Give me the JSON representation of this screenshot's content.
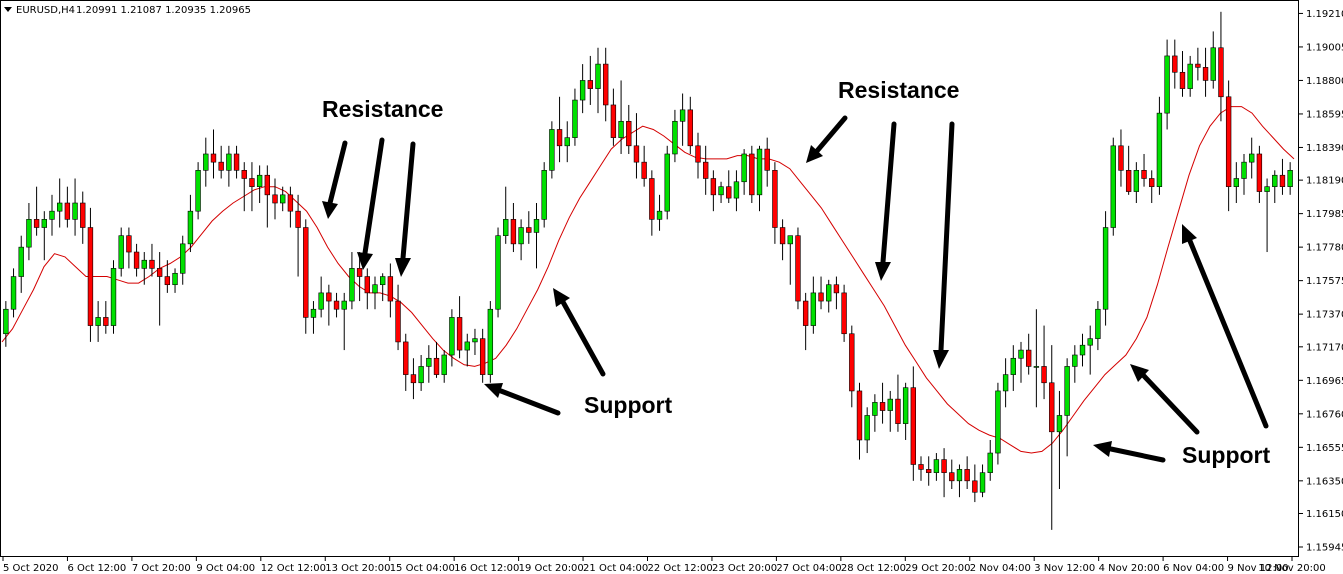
{
  "header": {
    "symbol_info": "EURUSD,H4",
    "ohlc": "1.20991 1.21087 1.20935 1.20965"
  },
  "colors": {
    "bull": "#00e000",
    "bear": "#ff0000",
    "ma_line": "#d40000",
    "wick": "#000000",
    "arrow": "#000000"
  },
  "chart_data": {
    "type": "candlestick",
    "title": "",
    "xlabel": "",
    "ylabel": "",
    "ylim": [
      1.1589,
      1.1928
    ],
    "y_ticks": [
      "1.19210",
      "1.19005",
      "1.18800",
      "1.18595",
      "1.18390",
      "1.18190",
      "1.17985",
      "1.17780",
      "1.17575",
      "1.17370",
      "1.17170",
      "1.16965",
      "1.16760",
      "1.16555",
      "1.16350",
      "1.16150",
      "1.15945"
    ],
    "x_ticks": [
      "5 Oct 2020",
      "6 Oct 12:00",
      "7 Oct 20:00",
      "9 Oct 04:00",
      "12 Oct 12:00",
      "13 Oct 20:00",
      "15 Oct 04:00",
      "16 Oct 12:00",
      "19 Oct 20:00",
      "21 Oct 04:00",
      "22 Oct 12:00",
      "23 Oct 20:00",
      "27 Oct 04:00",
      "28 Oct 12:00",
      "29 Oct 20:00",
      "2 Nov 04:00",
      "3 Nov 12:00",
      "4 Nov 20:00",
      "6 Nov 04:00",
      "9 Nov 12:00",
      "10 Nov 20:00"
    ],
    "candles": [
      [
        1.1725,
        1.1745,
        1.1717,
        1.174
      ],
      [
        1.174,
        1.1765,
        1.1735,
        1.176
      ],
      [
        1.176,
        1.1785,
        1.175,
        1.1778
      ],
      [
        1.1778,
        1.1805,
        1.177,
        1.1795
      ],
      [
        1.1795,
        1.1815,
        1.1785,
        1.179
      ],
      [
        1.179,
        1.18,
        1.177,
        1.1795
      ],
      [
        1.1795,
        1.181,
        1.1785,
        1.18
      ],
      [
        1.18,
        1.182,
        1.179,
        1.1805
      ],
      [
        1.1805,
        1.1815,
        1.179,
        1.1795
      ],
      [
        1.1795,
        1.182,
        1.1785,
        1.1805
      ],
      [
        1.1805,
        1.1812,
        1.178,
        1.179
      ],
      [
        1.179,
        1.1802,
        1.172,
        1.173
      ],
      [
        1.173,
        1.1745,
        1.172,
        1.1735
      ],
      [
        1.1735,
        1.1745,
        1.1725,
        1.173
      ],
      [
        1.173,
        1.177,
        1.1725,
        1.1765
      ],
      [
        1.1765,
        1.179,
        1.176,
        1.1785
      ],
      [
        1.1785,
        1.179,
        1.1765,
        1.1775
      ],
      [
        1.1775,
        1.178,
        1.176,
        1.1765
      ],
      [
        1.1765,
        1.1775,
        1.1755,
        1.177
      ],
      [
        1.177,
        1.178,
        1.176,
        1.1765
      ],
      [
        1.1765,
        1.1775,
        1.173,
        1.176
      ],
      [
        1.176,
        1.177,
        1.175,
        1.1755
      ],
      [
        1.1755,
        1.1765,
        1.175,
        1.1762
      ],
      [
        1.1762,
        1.1785,
        1.1755,
        1.178
      ],
      [
        1.178,
        1.181,
        1.1775,
        1.18
      ],
      [
        1.18,
        1.183,
        1.1795,
        1.1825
      ],
      [
        1.1825,
        1.1845,
        1.1815,
        1.1835
      ],
      [
        1.1835,
        1.185,
        1.182,
        1.183
      ],
      [
        1.183,
        1.184,
        1.182,
        1.1825
      ],
      [
        1.1825,
        1.184,
        1.1815,
        1.1835
      ],
      [
        1.1835,
        1.184,
        1.182,
        1.1825
      ],
      [
        1.1825,
        1.183,
        1.18,
        1.182
      ],
      [
        1.182,
        1.183,
        1.18,
        1.1815
      ],
      [
        1.1815,
        1.1828,
        1.1805,
        1.1822
      ],
      [
        1.1822,
        1.1828,
        1.179,
        1.181
      ],
      [
        1.181,
        1.182,
        1.1795,
        1.1805
      ],
      [
        1.1805,
        1.1815,
        1.18,
        1.181
      ],
      [
        1.181,
        1.1815,
        1.179,
        1.18
      ],
      [
        1.18,
        1.181,
        1.176,
        1.179
      ],
      [
        1.179,
        1.1795,
        1.1725,
        1.1735
      ],
      [
        1.1735,
        1.1745,
        1.1725,
        1.174
      ],
      [
        1.174,
        1.176,
        1.1735,
        1.175
      ],
      [
        1.175,
        1.1755,
        1.173,
        1.1745
      ],
      [
        1.1745,
        1.175,
        1.1735,
        1.174
      ],
      [
        1.174,
        1.175,
        1.1715,
        1.1745
      ],
      [
        1.1745,
        1.1775,
        1.174,
        1.1765
      ],
      [
        1.1765,
        1.1775,
        1.1745,
        1.176
      ],
      [
        1.176,
        1.1765,
        1.174,
        1.175
      ],
      [
        1.175,
        1.176,
        1.174,
        1.1755
      ],
      [
        1.1755,
        1.1762,
        1.1745,
        1.176
      ],
      [
        1.176,
        1.1768,
        1.1735,
        1.1745
      ],
      [
        1.1745,
        1.1755,
        1.1715,
        1.172
      ],
      [
        1.172,
        1.1725,
        1.169,
        1.17
      ],
      [
        1.17,
        1.171,
        1.1685,
        1.1695
      ],
      [
        1.1695,
        1.1712,
        1.169,
        1.1705
      ],
      [
        1.1705,
        1.1718,
        1.1695,
        1.171
      ],
      [
        1.171,
        1.172,
        1.1698,
        1.17
      ],
      [
        1.17,
        1.1715,
        1.1695,
        1.1712
      ],
      [
        1.1712,
        1.174,
        1.1705,
        1.1735
      ],
      [
        1.1735,
        1.1748,
        1.171,
        1.1715
      ],
      [
        1.1715,
        1.1725,
        1.1705,
        1.172
      ],
      [
        1.172,
        1.1728,
        1.1712,
        1.1722
      ],
      [
        1.1722,
        1.1728,
        1.1695,
        1.17
      ],
      [
        1.17,
        1.1745,
        1.1695,
        1.174
      ],
      [
        1.174,
        1.179,
        1.1735,
        1.1785
      ],
      [
        1.1785,
        1.1815,
        1.178,
        1.1795
      ],
      [
        1.1795,
        1.1805,
        1.1775,
        1.178
      ],
      [
        1.178,
        1.1795,
        1.177,
        1.179
      ],
      [
        1.179,
        1.18,
        1.178,
        1.1787
      ],
      [
        1.1787,
        1.1805,
        1.1765,
        1.1795
      ],
      [
        1.1795,
        1.183,
        1.179,
        1.1825
      ],
      [
        1.1825,
        1.1855,
        1.182,
        1.185
      ],
      [
        1.185,
        1.187,
        1.183,
        1.184
      ],
      [
        1.184,
        1.1855,
        1.183,
        1.1845
      ],
      [
        1.1845,
        1.1875,
        1.184,
        1.1868
      ],
      [
        1.1868,
        1.189,
        1.186,
        1.188
      ],
      [
        1.188,
        1.1895,
        1.1865,
        1.1875
      ],
      [
        1.1875,
        1.19,
        1.186,
        1.189
      ],
      [
        1.189,
        1.19,
        1.1855,
        1.1865
      ],
      [
        1.1865,
        1.1875,
        1.184,
        1.1845
      ],
      [
        1.1845,
        1.188,
        1.1835,
        1.1855
      ],
      [
        1.1855,
        1.1865,
        1.1835,
        1.184
      ],
      [
        1.184,
        1.186,
        1.182,
        1.183
      ],
      [
        1.183,
        1.184,
        1.1815,
        1.182
      ],
      [
        1.182,
        1.1825,
        1.1785,
        1.1795
      ],
      [
        1.1795,
        1.181,
        1.1788,
        1.18
      ],
      [
        1.18,
        1.184,
        1.1795,
        1.1835
      ],
      [
        1.1835,
        1.1862,
        1.183,
        1.1855
      ],
      [
        1.1855,
        1.1872,
        1.184,
        1.1862
      ],
      [
        1.1862,
        1.187,
        1.1835,
        1.184
      ],
      [
        1.184,
        1.1848,
        1.182,
        1.183
      ],
      [
        1.183,
        1.184,
        1.181,
        1.182
      ],
      [
        1.182,
        1.1825,
        1.18,
        1.181
      ],
      [
        1.181,
        1.1818,
        1.1805,
        1.1815
      ],
      [
        1.1815,
        1.1825,
        1.1805,
        1.1808
      ],
      [
        1.1808,
        1.1825,
        1.18,
        1.1818
      ],
      [
        1.1818,
        1.1838,
        1.181,
        1.1835
      ],
      [
        1.1835,
        1.184,
        1.1805,
        1.181
      ],
      [
        1.181,
        1.184,
        1.18,
        1.1838
      ],
      [
        1.1838,
        1.1845,
        1.1815,
        1.1825
      ],
      [
        1.1825,
        1.183,
        1.178,
        1.179
      ],
      [
        1.179,
        1.1795,
        1.177,
        1.178
      ],
      [
        1.178,
        1.1785,
        1.1755,
        1.1785
      ],
      [
        1.1785,
        1.179,
        1.174,
        1.1745
      ],
      [
        1.1745,
        1.175,
        1.1715,
        1.173
      ],
      [
        1.173,
        1.176,
        1.1725,
        1.175
      ],
      [
        1.175,
        1.176,
        1.174,
        1.1745
      ],
      [
        1.1745,
        1.1758,
        1.1738,
        1.1755
      ],
      [
        1.1755,
        1.176,
        1.174,
        1.175
      ],
      [
        1.175,
        1.1755,
        1.172,
        1.1725
      ],
      [
        1.1725,
        1.173,
        1.168,
        1.169
      ],
      [
        1.169,
        1.1695,
        1.1648,
        1.166
      ],
      [
        1.166,
        1.168,
        1.1652,
        1.1675
      ],
      [
        1.1675,
        1.1688,
        1.1665,
        1.1683
      ],
      [
        1.1683,
        1.1695,
        1.167,
        1.1678
      ],
      [
        1.1678,
        1.169,
        1.1665,
        1.1685
      ],
      [
        1.1685,
        1.17,
        1.1665,
        1.167
      ],
      [
        1.167,
        1.1695,
        1.166,
        1.1692
      ],
      [
        1.1692,
        1.1705,
        1.1635,
        1.1645
      ],
      [
        1.1645,
        1.165,
        1.1635,
        1.1642
      ],
      [
        1.1642,
        1.165,
        1.1632,
        1.164
      ],
      [
        1.164,
        1.1652,
        1.1635,
        1.1648
      ],
      [
        1.1648,
        1.1655,
        1.1625,
        1.164
      ],
      [
        1.164,
        1.1648,
        1.163,
        1.1635
      ],
      [
        1.1635,
        1.1645,
        1.1625,
        1.1642
      ],
      [
        1.1642,
        1.165,
        1.163,
        1.1635
      ],
      [
        1.1635,
        1.1645,
        1.1622,
        1.1628
      ],
      [
        1.1628,
        1.1645,
        1.1625,
        1.164
      ],
      [
        1.164,
        1.166,
        1.1635,
        1.1652
      ],
      [
        1.1652,
        1.1695,
        1.1645,
        1.169
      ],
      [
        1.169,
        1.171,
        1.168,
        1.17
      ],
      [
        1.17,
        1.1718,
        1.169,
        1.171
      ],
      [
        1.171,
        1.172,
        1.1695,
        1.1715
      ],
      [
        1.1715,
        1.1725,
        1.17,
        1.1705
      ],
      [
        1.1705,
        1.174,
        1.168,
        1.1705
      ],
      [
        1.1705,
        1.173,
        1.1685,
        1.1695
      ],
      [
        1.1695,
        1.1718,
        1.1605,
        1.1665
      ],
      [
        1.1665,
        1.169,
        1.163,
        1.1675
      ],
      [
        1.1675,
        1.171,
        1.165,
        1.1705
      ],
      [
        1.1705,
        1.1718,
        1.1695,
        1.1712
      ],
      [
        1.1712,
        1.1725,
        1.1705,
        1.1718
      ],
      [
        1.1718,
        1.173,
        1.17,
        1.1722
      ],
      [
        1.1722,
        1.1745,
        1.1715,
        1.174
      ],
      [
        1.174,
        1.18,
        1.173,
        1.179
      ],
      [
        1.179,
        1.1845,
        1.1785,
        1.184
      ],
      [
        1.184,
        1.185,
        1.1815,
        1.1825
      ],
      [
        1.1825,
        1.184,
        1.181,
        1.1812
      ],
      [
        1.1812,
        1.183,
        1.1805,
        1.1825
      ],
      [
        1.1825,
        1.1835,
        1.1815,
        1.182
      ],
      [
        1.182,
        1.1825,
        1.1805,
        1.1815
      ],
      [
        1.1815,
        1.187,
        1.181,
        1.186
      ],
      [
        1.186,
        1.1905,
        1.185,
        1.1895
      ],
      [
        1.1895,
        1.1905,
        1.1875,
        1.1885
      ],
      [
        1.1885,
        1.1898,
        1.187,
        1.1875
      ],
      [
        1.1875,
        1.1895,
        1.187,
        1.189
      ],
      [
        1.189,
        1.19,
        1.188,
        1.1888
      ],
      [
        1.1888,
        1.19,
        1.187,
        1.188
      ],
      [
        1.188,
        1.191,
        1.1875,
        1.19
      ],
      [
        1.19,
        1.1922,
        1.1855,
        1.187
      ],
      [
        1.187,
        1.188,
        1.18,
        1.1815
      ],
      [
        1.1815,
        1.183,
        1.1805,
        1.182
      ],
      [
        1.182,
        1.1835,
        1.181,
        1.183
      ],
      [
        1.183,
        1.1845,
        1.182,
        1.1835
      ],
      [
        1.1835,
        1.184,
        1.1805,
        1.1812
      ],
      [
        1.1812,
        1.182,
        1.1775,
        1.1815
      ],
      [
        1.1815,
        1.1825,
        1.1805,
        1.1822
      ],
      [
        1.1822,
        1.1832,
        1.181,
        1.1815
      ],
      [
        1.1815,
        1.183,
        1.181,
        1.1825
      ]
    ],
    "moving_average": [
      1.172,
      1.1728,
      1.174,
      1.1752,
      1.1766,
      1.1774,
      1.1772,
      1.1766,
      1.176,
      1.176,
      1.176,
      1.1758,
      1.1756,
      1.1756,
      1.176,
      1.1765,
      1.1768,
      1.1772,
      1.1778,
      1.1786,
      1.1794,
      1.18,
      1.1805,
      1.1809,
      1.1813,
      1.1815,
      1.1815,
      1.1812,
      1.1806,
      1.18,
      1.179,
      1.1778,
      1.1768,
      1.176,
      1.1754,
      1.175,
      1.175,
      1.1748,
      1.1744,
      1.1738,
      1.173,
      1.1722,
      1.1715,
      1.171,
      1.1706,
      1.1705,
      1.1707,
      1.171,
      1.1718,
      1.1728,
      1.174,
      1.1752,
      1.1766,
      1.1782,
      1.1796,
      1.1808,
      1.1818,
      1.1828,
      1.1838,
      1.1844,
      1.1848,
      1.1852,
      1.185,
      1.1846,
      1.1841,
      1.1836,
      1.1833,
      1.1832,
      1.1832,
      1.1832,
      1.1834,
      1.1834,
      1.1832,
      1.1832,
      1.183,
      1.1826,
      1.1818,
      1.181,
      1.1802,
      1.1792,
      1.1782,
      1.1772,
      1.1762,
      1.1752,
      1.1742,
      1.173,
      1.1718,
      1.1708,
      1.1698,
      1.169,
      1.1682,
      1.1676,
      1.167,
      1.1666,
      1.1663,
      1.1661,
      1.1657,
      1.1653,
      1.1652,
      1.1653,
      1.1658,
      1.1666,
      1.1675,
      1.1684,
      1.1692,
      1.17,
      1.1706,
      1.1712,
      1.1722,
      1.1735,
      1.1755,
      1.1778,
      1.18,
      1.1822,
      1.184,
      1.1852,
      1.186,
      1.1864,
      1.1864,
      1.186,
      1.1852,
      1.1845,
      1.1838,
      1.1832
    ],
    "annotations": [
      {
        "label": "Resistance"
      },
      {
        "label": "Resistance"
      },
      {
        "label": "Support"
      },
      {
        "label": "Support"
      }
    ]
  }
}
